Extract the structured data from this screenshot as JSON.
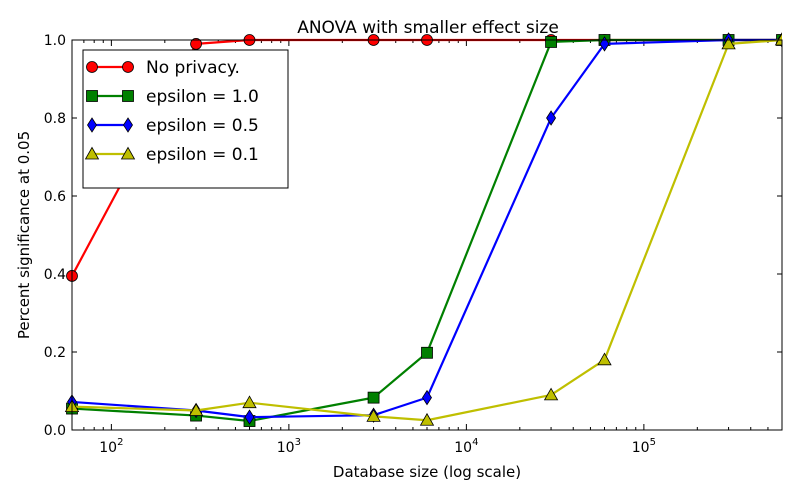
{
  "chart_data": {
    "type": "line",
    "title": "ANOVA with smaller effect size",
    "xlabel": "Database size (log scale)",
    "ylabel": "Percent significance at 0.05",
    "xscale": "log",
    "xlim": [
      60,
      600000
    ],
    "ylim": [
      0,
      1.0
    ],
    "grid": false,
    "legend_position": "top-left",
    "x_ticks": [
      {
        "value": 100,
        "base": "10",
        "exp": "2"
      },
      {
        "value": 1000,
        "base": "10",
        "exp": "3"
      },
      {
        "value": 10000,
        "base": "10",
        "exp": "4"
      },
      {
        "value": 100000,
        "base": "10",
        "exp": "5"
      }
    ],
    "y_ticks": [
      {
        "value": 0.0,
        "label": "0.0"
      },
      {
        "value": 0.2,
        "label": "0.2"
      },
      {
        "value": 0.4,
        "label": "0.4"
      },
      {
        "value": 0.6,
        "label": "0.6"
      },
      {
        "value": 0.8,
        "label": "0.8"
      },
      {
        "value": 1.0,
        "label": "1.0"
      }
    ],
    "series": [
      {
        "name": "No privacy.",
        "color": "#ff0000",
        "marker": "circle",
        "x": [
          60,
          300,
          600,
          3000,
          6000,
          30000,
          60000,
          300000,
          600000
        ],
        "y": [
          0.395,
          0.99,
          1.0,
          1.0,
          1.0,
          1.0,
          1.0,
          1.0,
          1.0
        ]
      },
      {
        "name": "epsilon = 1.0",
        "color": "#008000",
        "marker": "square",
        "x": [
          60,
          300,
          600,
          3000,
          6000,
          30000,
          60000,
          300000,
          600000
        ],
        "y": [
          0.055,
          0.037,
          0.023,
          0.083,
          0.198,
          0.995,
          1.0,
          1.0,
          1.0
        ]
      },
      {
        "name": "epsilon = 0.5",
        "color": "#0000ff",
        "marker": "diamond",
        "x": [
          60,
          300,
          600,
          3000,
          6000,
          30000,
          60000,
          300000,
          600000
        ],
        "y": [
          0.072,
          0.05,
          0.033,
          0.038,
          0.083,
          0.8,
          0.99,
          1.0,
          1.0
        ]
      },
      {
        "name": "epsilon = 0.1",
        "color": "#bfbf00",
        "marker": "triangle",
        "x": [
          60,
          300,
          600,
          3000,
          6000,
          30000,
          60000,
          300000,
          600000
        ],
        "y": [
          0.06,
          0.05,
          0.07,
          0.035,
          0.025,
          0.09,
          0.18,
          0.99,
          1.0
        ]
      }
    ]
  }
}
